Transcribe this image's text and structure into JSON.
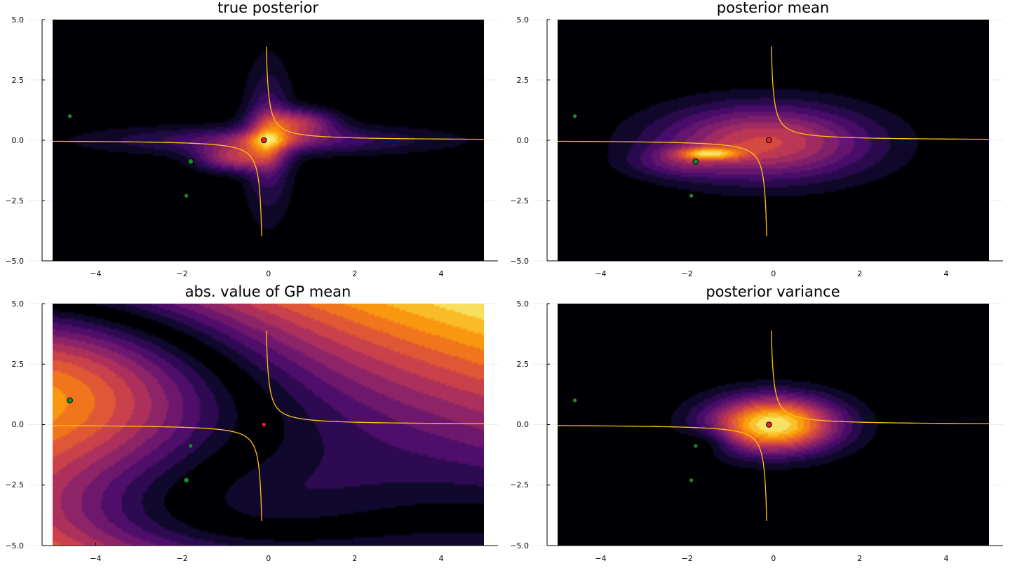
{
  "chart_data": [
    {
      "type": "heatmap",
      "title": "true posterior",
      "kind": "posterior",
      "xlim": [
        -5,
        5
      ],
      "ylim": [
        -5,
        5
      ],
      "xticks": [
        "−4",
        "−2",
        "0",
        "2",
        "4"
      ],
      "yticks": [
        "5.0",
        "2.5",
        "0.0",
        "−2.5",
        "−5.0"
      ],
      "colormap": "inferno",
      "grid": true,
      "large_points": [
        {
          "x": -0.1,
          "y": 0.0,
          "color": "#e8212b"
        },
        {
          "x": -1.8,
          "y": -0.88,
          "color": "#1a8a28"
        }
      ],
      "small_points": [
        {
          "x": -4.6,
          "y": 1.0,
          "color": "#1a8a28"
        },
        {
          "x": -1.9,
          "y": -2.3,
          "color": "#1a8a28"
        }
      ]
    },
    {
      "type": "heatmap",
      "title": "posterior mean",
      "kind": "mean",
      "xlim": [
        -5,
        5
      ],
      "ylim": [
        -5,
        5
      ],
      "xticks": [
        "−4",
        "−2",
        "0",
        "2",
        "4"
      ],
      "yticks": [
        "5.0",
        "2.5",
        "0.0",
        "−2.5",
        "−5.0"
      ],
      "colormap": "inferno",
      "grid": true,
      "large_points": [
        {
          "x": -0.1,
          "y": 0.0,
          "color": "#e8212b"
        },
        {
          "x": -1.8,
          "y": -0.88,
          "color": "#1a8a28"
        }
      ],
      "small_points": [
        {
          "x": -4.6,
          "y": 1.0,
          "color": "#1a8a28"
        },
        {
          "x": -1.9,
          "y": -2.3,
          "color": "#1a8a28"
        }
      ]
    },
    {
      "type": "heatmap",
      "title": "abs. value of GP mean",
      "kind": "absgp",
      "xlim": [
        -5,
        5
      ],
      "ylim": [
        -5,
        5
      ],
      "xticks": [
        "−4",
        "−2",
        "0",
        "2",
        "4"
      ],
      "yticks": [
        "5.0",
        "2.5",
        "0.0",
        "−2.5",
        "−5.0"
      ],
      "colormap": "inferno",
      "grid": true,
      "large_points": [
        {
          "x": -4.6,
          "y": 1.0,
          "color": "#1a8a28"
        },
        {
          "x": -1.9,
          "y": -2.3,
          "color": "#1a8a28"
        }
      ],
      "small_points": [
        {
          "x": -0.1,
          "y": 0.0,
          "color": "#e8212b"
        },
        {
          "x": -1.8,
          "y": -0.88,
          "color": "#1a8a28"
        }
      ]
    },
    {
      "type": "heatmap",
      "title": "posterior variance",
      "kind": "variance",
      "xlim": [
        -5,
        5
      ],
      "ylim": [
        -5,
        5
      ],
      "xticks": [
        "−4",
        "−2",
        "0",
        "2",
        "4"
      ],
      "yticks": [
        "5.0",
        "2.5",
        "0.0",
        "−2.5",
        "−5.0"
      ],
      "colormap": "inferno",
      "grid": true,
      "large_points": [
        {
          "x": -0.1,
          "y": 0.0,
          "color": "#e8212b"
        }
      ],
      "small_points": [
        {
          "x": -4.6,
          "y": 1.0,
          "color": "#1a8a28"
        },
        {
          "x": -1.8,
          "y": -0.88,
          "color": "#1a8a28"
        },
        {
          "x": -1.9,
          "y": -2.3,
          "color": "#1a8a28"
        }
      ]
    }
  ],
  "colors": {
    "curve": "#ffc20e",
    "contour_line": "#000000",
    "background_field": "#000000"
  }
}
